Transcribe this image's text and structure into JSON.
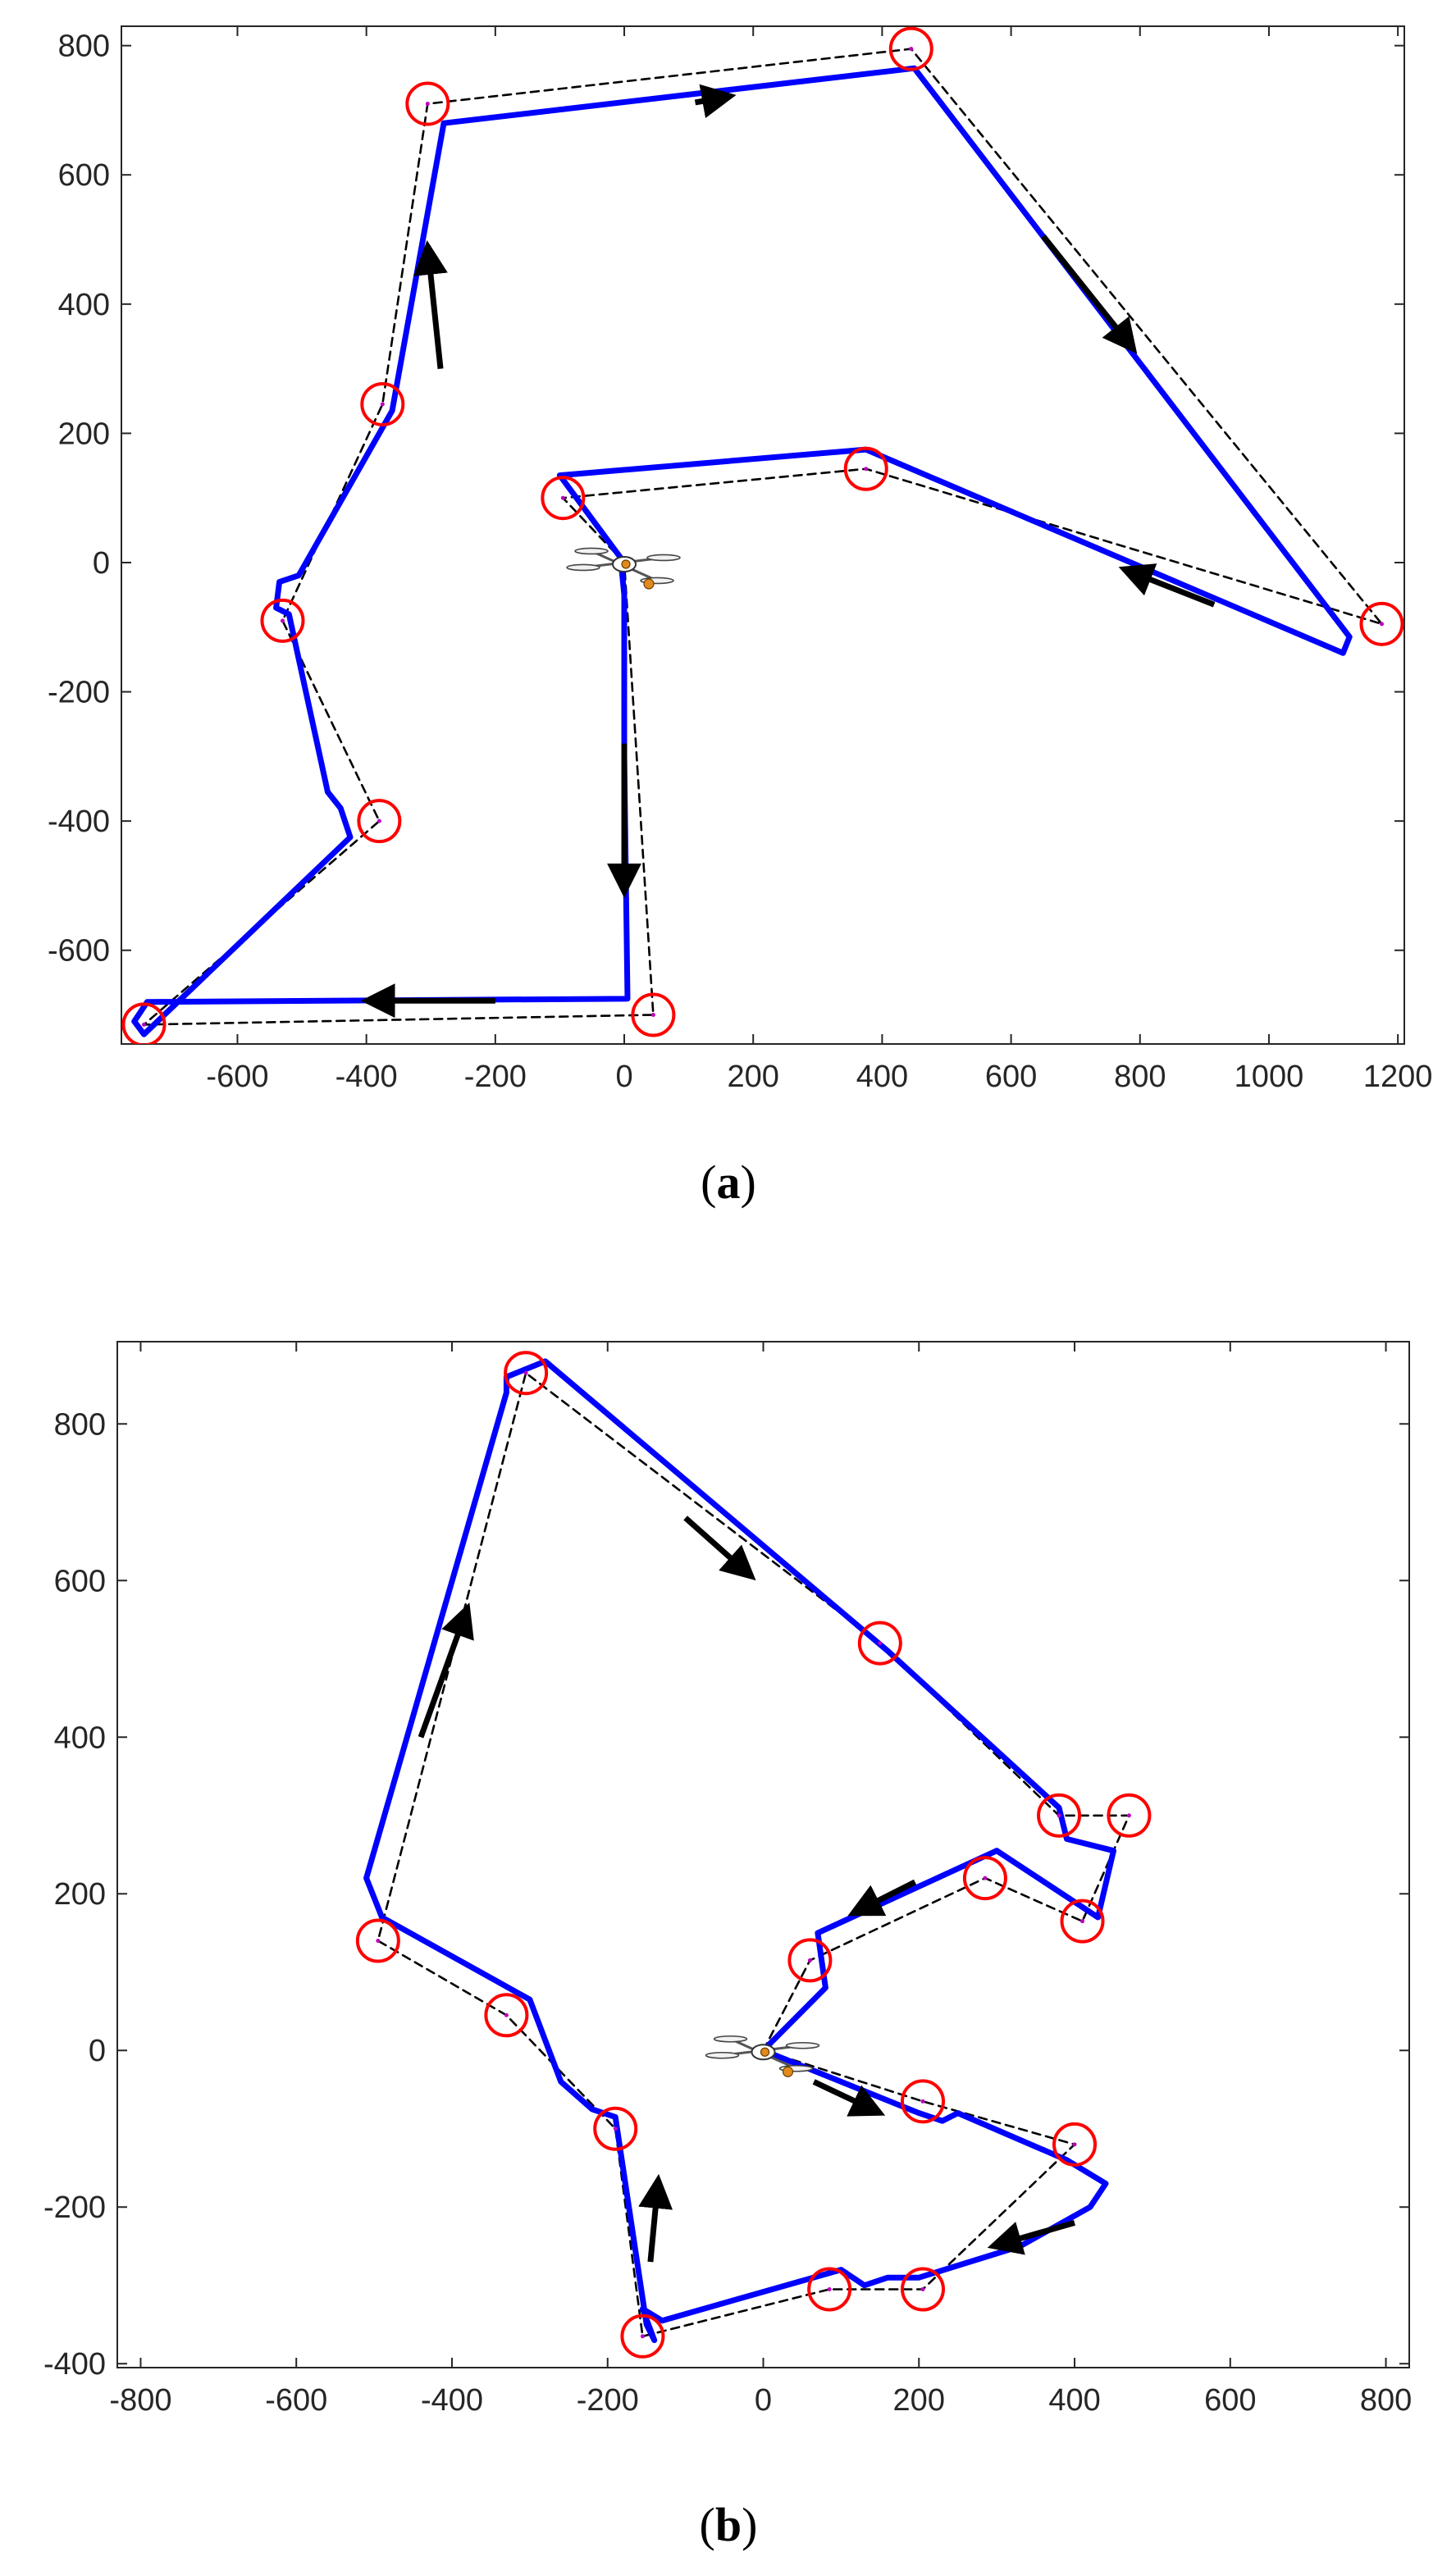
{
  "figure": {
    "panels": [
      {
        "label_open": "(",
        "label_letter": "a",
        "label_close": ")"
      },
      {
        "label_open": "(",
        "label_letter": "b",
        "label_close": ")"
      }
    ]
  },
  "colors": {
    "path": "#0000ff",
    "waypoint_circle": "#ff0000",
    "connector": "#000000",
    "arrow": "#000000",
    "center_dot": "#bf00bf",
    "axes": "#262626"
  },
  "chart_data": [
    {
      "type": "line",
      "panel": "a",
      "xlim": [
        -780,
        1210
      ],
      "ylim": [
        -745,
        830
      ],
      "xticks": [
        -600,
        -400,
        -200,
        0,
        200,
        400,
        600,
        800,
        1000,
        1200
      ],
      "yticks": [
        -600,
        -400,
        -200,
        0,
        200,
        400,
        600,
        800
      ],
      "grid": false,
      "legend": "none",
      "start": [
        0,
        0
      ],
      "waypoints": [
        [
          -95,
          100
        ],
        [
          375,
          145
        ],
        [
          1175,
          -95
        ],
        [
          445,
          795
        ],
        [
          -305,
          710
        ],
        [
          -375,
          245
        ],
        [
          -530,
          -90
        ],
        [
          -380,
          -400
        ],
        [
          -745,
          -715
        ],
        [
          45,
          -700
        ]
      ],
      "series": [
        {
          "style": "dashed",
          "color": "#000000",
          "x": [
            0,
            -95,
            375,
            1175,
            445,
            -305,
            -375,
            -530,
            -380,
            -745,
            45,
            0
          ],
          "y": [
            0,
            100,
            145,
            -95,
            795,
            710,
            245,
            -90,
            -400,
            -715,
            -700,
            0
          ]
        },
        {
          "style": "solid",
          "color": "#0000ff",
          "x": [
            0,
            -100,
            375,
            1115,
            1125,
            450,
            -280,
            -360,
            -505,
            -535,
            -540,
            -520,
            -460,
            -440,
            -425,
            -745,
            -760,
            -740,
            5,
            0,
            0,
            -5
          ],
          "y": [
            0,
            135,
            175,
            -140,
            -115,
            765,
            680,
            235,
            -20,
            -30,
            -70,
            -80,
            -355,
            -380,
            -425,
            -730,
            -710,
            -680,
            -675,
            -300,
            -50,
            0
          ]
        }
      ],
      "arrows": [
        {
          "x": [
            110,
            165
          ],
          "y": [
            712,
            722
          ]
        },
        {
          "x": [
            650,
            790
          ],
          "y": [
            505,
            330
          ]
        },
        {
          "x": [
            915,
            775
          ],
          "y": [
            -65,
            -10
          ]
        },
        {
          "x": [
            -285,
            -305
          ],
          "y": [
            300,
            490
          ]
        },
        {
          "x": [
            -200,
            -400
          ],
          "y": [
            -678,
            -678
          ]
        },
        {
          "x": [
            0,
            0
          ],
          "y": [
            -280,
            -510
          ]
        }
      ]
    },
    {
      "type": "line",
      "panel": "b",
      "xlim": [
        -830,
        830
      ],
      "ylim": [
        -405,
        905
      ],
      "xticks": [
        -800,
        -600,
        -400,
        -200,
        0,
        200,
        400,
        600,
        800
      ],
      "yticks": [
        -400,
        -200,
        0,
        200,
        400,
        600,
        800
      ],
      "grid": false,
      "legend": "none",
      "start": [
        0,
        0
      ],
      "waypoints": [
        [
          -305,
          865
        ],
        [
          150,
          520
        ],
        [
          380,
          300
        ],
        [
          470,
          300
        ],
        [
          285,
          220
        ],
        [
          410,
          165
        ],
        [
          60,
          115
        ],
        [
          -495,
          140
        ],
        [
          -330,
          45
        ],
        [
          -190,
          -100
        ],
        [
          205,
          -65
        ],
        [
          400,
          -120
        ],
        [
          85,
          -305
        ],
        [
          205,
          -305
        ],
        [
          -155,
          -365
        ]
      ],
      "series": [
        {
          "style": "dashed",
          "color": "#000000",
          "x": [
            0,
            60,
            285,
            410,
            470,
            380,
            150,
            -305,
            -495,
            -330,
            -190,
            -155,
            85,
            205,
            400,
            205,
            0
          ],
          "y": [
            0,
            115,
            220,
            165,
            300,
            300,
            520,
            865,
            140,
            45,
            -100,
            -365,
            -305,
            -305,
            -120,
            -65,
            0
          ]
        },
        {
          "style": "solid",
          "color": "#0000ff",
          "x": [
            0,
            80,
            70,
            300,
            430,
            450,
            390,
            380,
            160,
            -280,
            -330,
            -330,
            -510,
            -490,
            -300,
            -260,
            -220,
            -190,
            -150,
            -140,
            -155,
            -130,
            100,
            130,
            160,
            200,
            330,
            420,
            440,
            390,
            250,
            230,
            200,
            0
          ],
          "y": [
            0,
            80,
            150,
            255,
            170,
            255,
            270,
            310,
            510,
            880,
            860,
            840,
            220,
            170,
            65,
            -40,
            -75,
            -85,
            -350,
            -370,
            -330,
            -345,
            -280,
            -300,
            -290,
            -290,
            -250,
            -200,
            -170,
            -140,
            -80,
            -90,
            -80,
            0
          ]
        }
      ],
      "arrows": [
        {
          "x": [
            -440,
            -380
          ],
          "y": [
            400,
            565
          ]
        },
        {
          "x": [
            -100,
            -15
          ],
          "y": [
            680,
            605
          ]
        },
        {
          "x": [
            195,
            115
          ],
          "y": [
            215,
            175
          ]
        },
        {
          "x": [
            -145,
            -135
          ],
          "y": [
            -270,
            -165
          ]
        },
        {
          "x": [
            400,
            295
          ],
          "y": [
            -220,
            -250
          ]
        },
        {
          "x": [
            65,
            150
          ],
          "y": [
            -40,
            -80
          ]
        }
      ]
    }
  ]
}
